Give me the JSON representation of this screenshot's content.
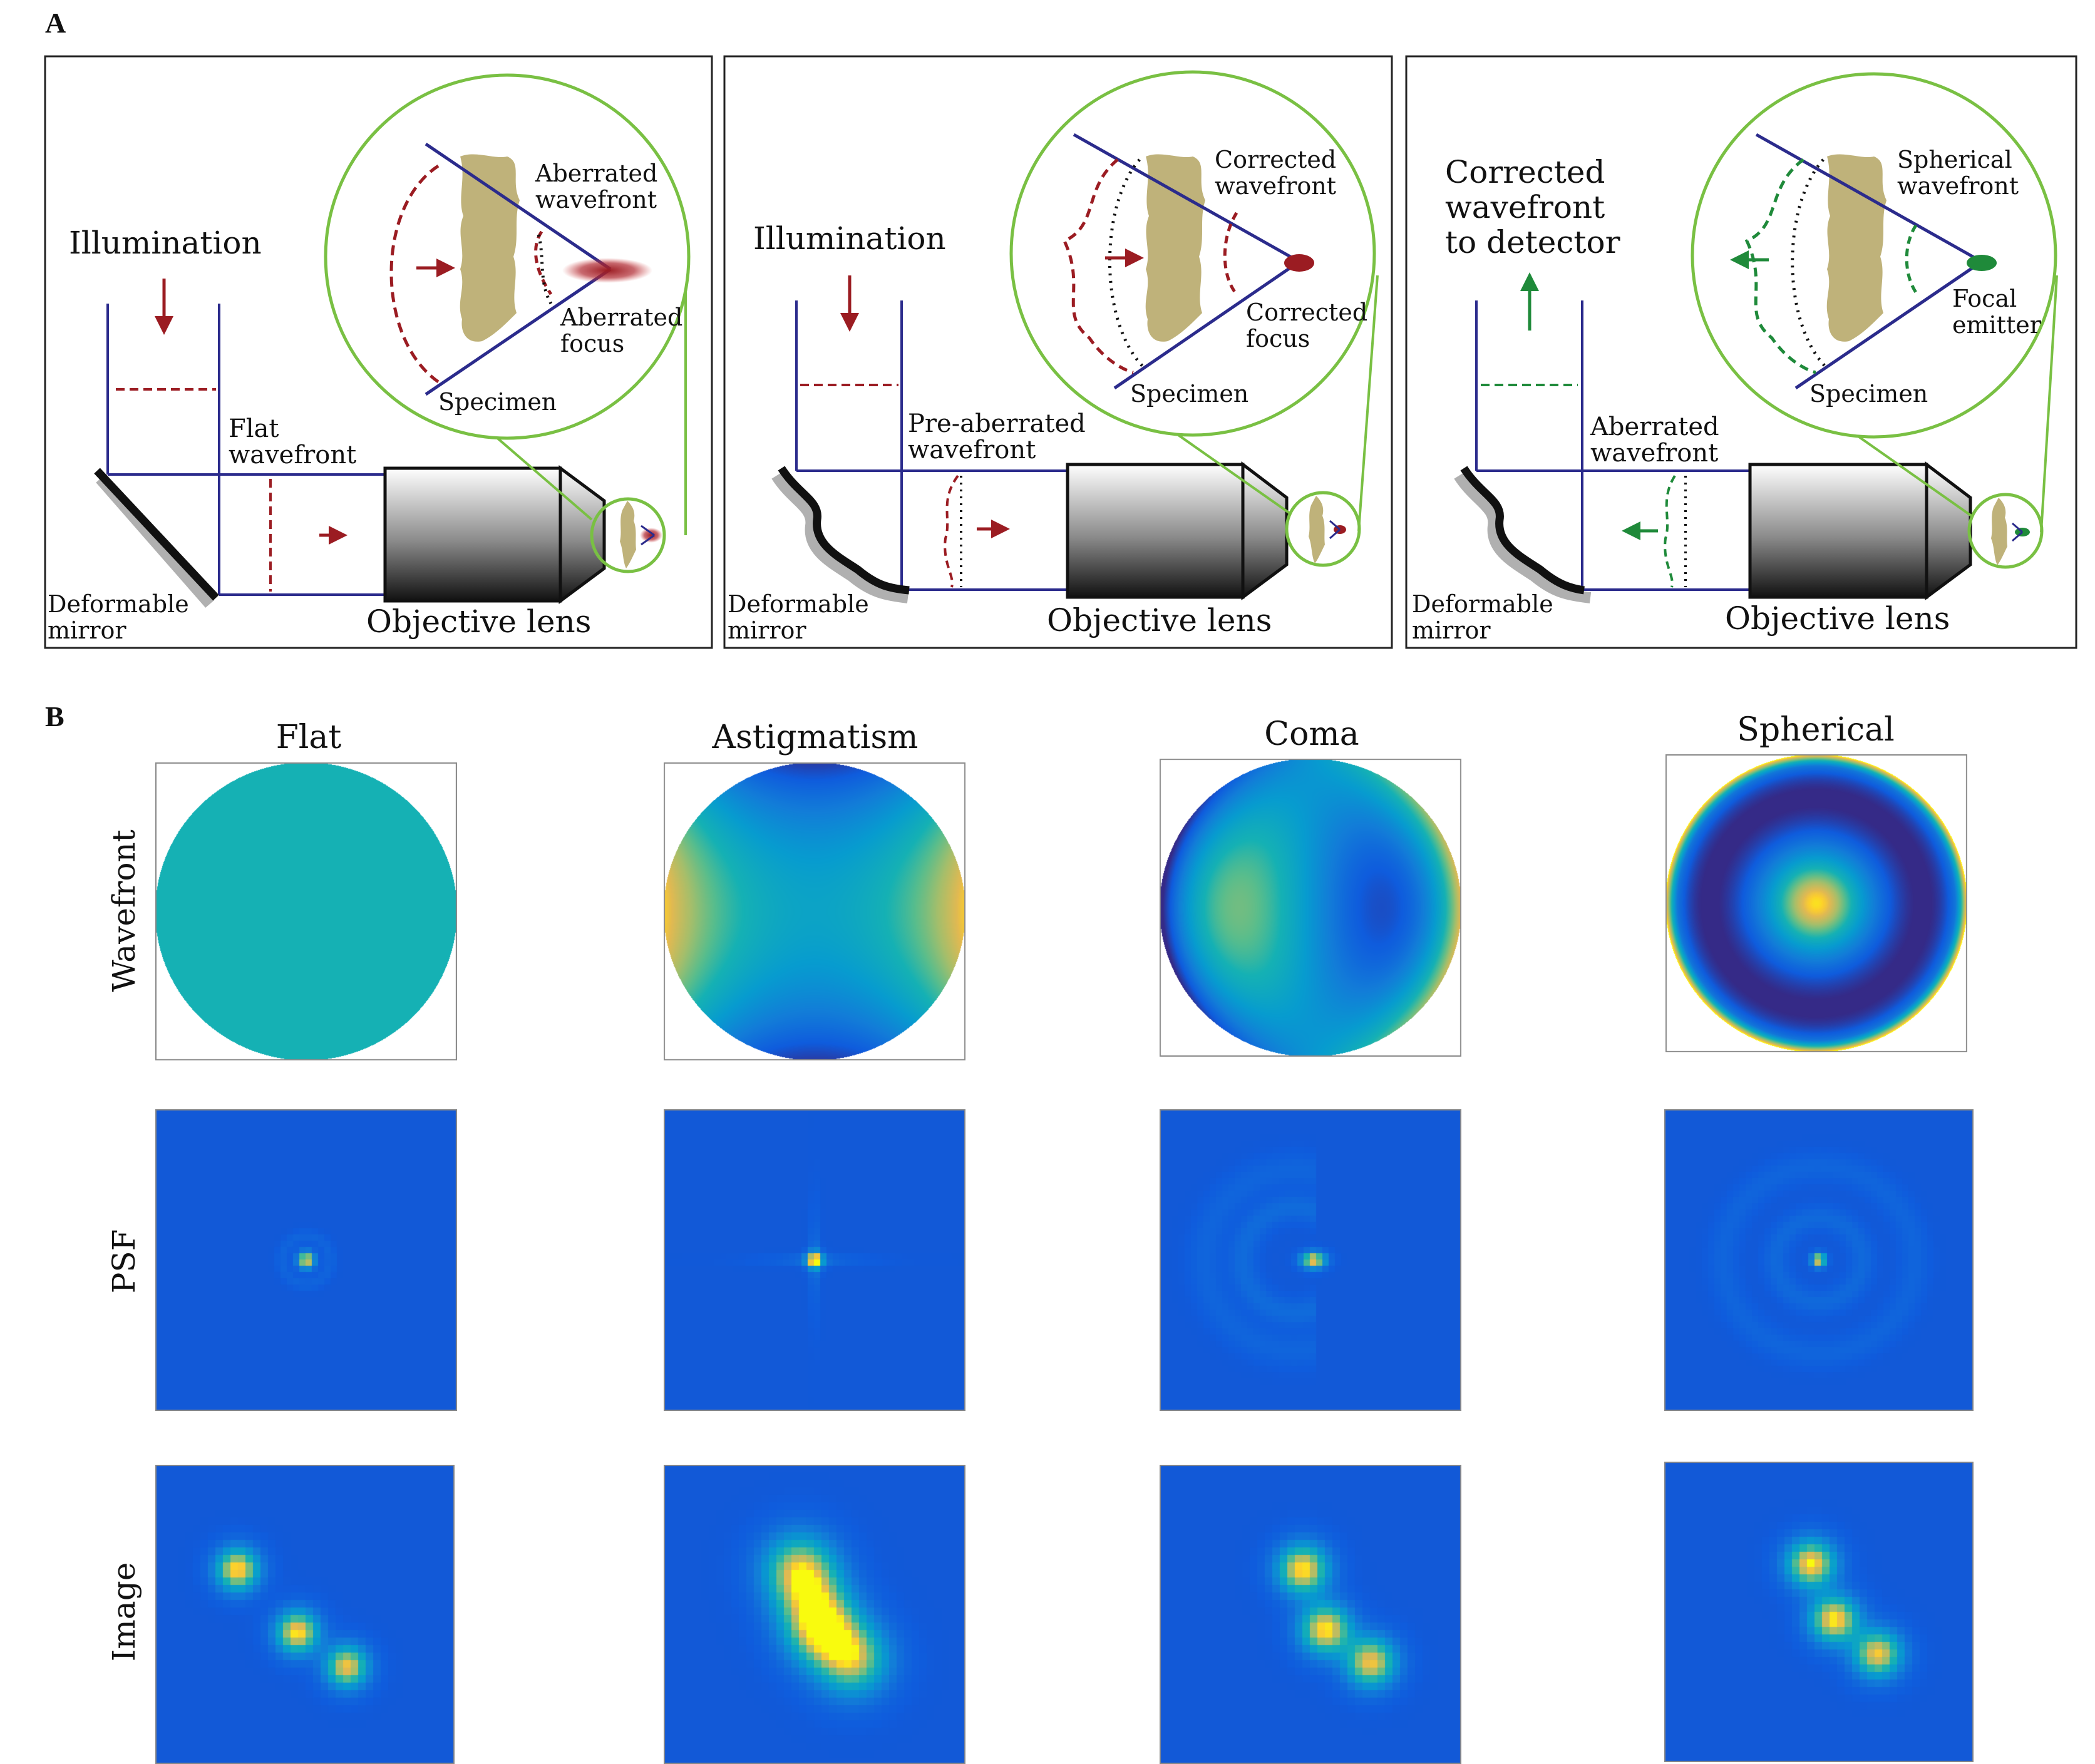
{
  "panel_a": {
    "letter": "A",
    "panel1": {
      "illumination": "Illumination",
      "flat_wavefront": [
        "Flat",
        "wavefront"
      ],
      "deformable_mirror": [
        "Deformable",
        "mirror"
      ],
      "objective_lens": "Objective lens",
      "inset_top": [
        "Aberrated",
        "wavefront"
      ],
      "inset_bottom": [
        "Aberrated",
        "focus"
      ],
      "specimen": "Specimen"
    },
    "panel2": {
      "illumination": "Illumination",
      "pre_aberrated": [
        "Pre-aberrated",
        "wavefront"
      ],
      "deformable_mirror": [
        "Deformable",
        "mirror"
      ],
      "objective_lens": "Objective lens",
      "inset_top": [
        "Corrected",
        "wavefront"
      ],
      "inset_bottom": [
        "Corrected",
        "focus"
      ],
      "specimen": "Specimen"
    },
    "panel3": {
      "corrected_to_detector": [
        "Corrected",
        "wavefront",
        "to detector"
      ],
      "aberrated_wavefront": [
        "Aberrated",
        "wavefront"
      ],
      "deformable_mirror": [
        "Deformable",
        "mirror"
      ],
      "objective_lens": "Objective lens",
      "inset_top": [
        "Spherical",
        "wavefront"
      ],
      "inset_bottom": [
        "Focal",
        "emitter"
      ],
      "specimen": "Specimen"
    },
    "colors": {
      "frame": "#2b2b8c",
      "aberrated": "#9b1c22",
      "emission": "#1f8a3a",
      "zoom": "#79c043",
      "specimen": "#bfb27a"
    }
  },
  "panel_b": {
    "letter": "B",
    "columns": [
      "Flat",
      "Astigmatism",
      "Coma",
      "Spherical"
    ],
    "rows": [
      "Wavefront",
      "PSF",
      "Image"
    ],
    "colormap": "parula"
  }
}
